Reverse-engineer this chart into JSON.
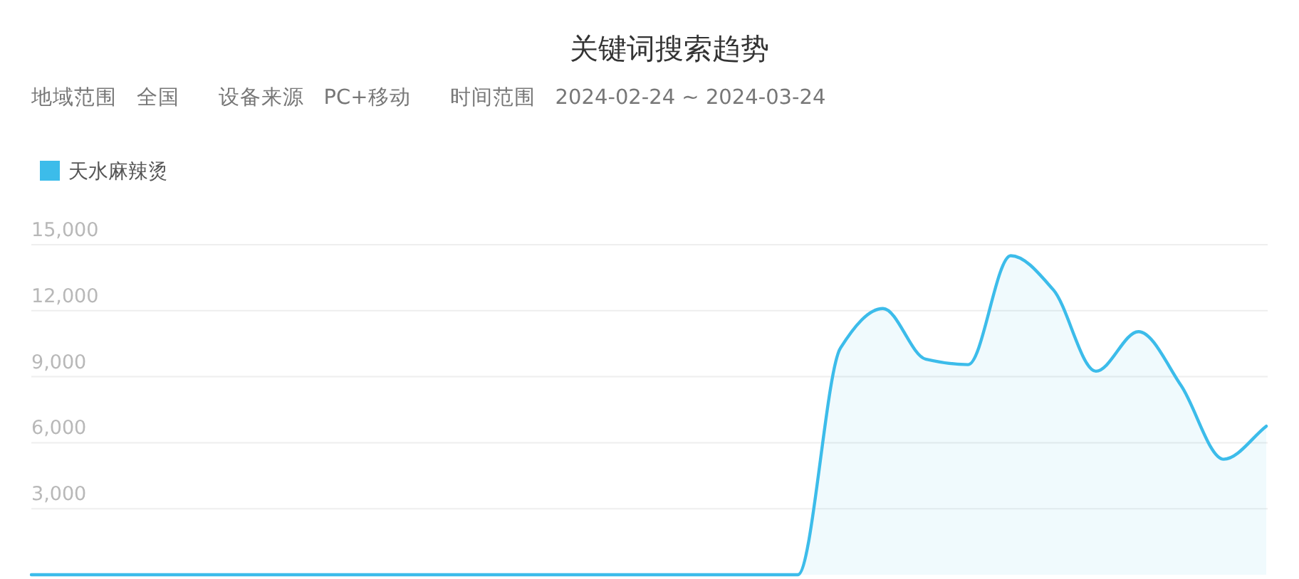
{
  "chart_data": {
    "type": "area",
    "title": "关键词搜索趋势",
    "subtitle": "地域范围   全国      设备来源   PC+移动      时间范围   2024-02-24 ~ 2024-03-24",
    "categories": [
      null,
      null,
      null,
      null,
      null,
      null,
      null,
      null,
      null,
      null,
      null,
      null,
      null,
      null,
      null,
      null,
      null,
      null,
      null,
      null,
      null,
      null,
      null,
      null,
      null,
      null,
      null,
      null,
      null,
      null
    ],
    "series": [
      {
        "name": "天水麻辣烫",
        "color": "#3cbcea",
        "values": [
          0,
          0,
          0,
          0,
          0,
          0,
          0,
          0,
          0,
          0,
          0,
          0,
          0,
          0,
          0,
          0,
          0,
          0,
          0,
          10300,
          12100,
          9800,
          9550,
          14500,
          12950,
          9250,
          11050,
          8600,
          5250,
          6750
        ]
      }
    ],
    "ylim": [
      0,
      15000
    ],
    "yticks": [
      {
        "value": 3000,
        "label": "3,000"
      },
      {
        "value": 6000,
        "label": "6,000"
      },
      {
        "value": 9000,
        "label": "9,000"
      },
      {
        "value": 12000,
        "label": "12,000"
      },
      {
        "value": 15000,
        "label": "15,000"
      }
    ],
    "grid": "y",
    "legend": "top left",
    "tick_labels": "y"
  }
}
